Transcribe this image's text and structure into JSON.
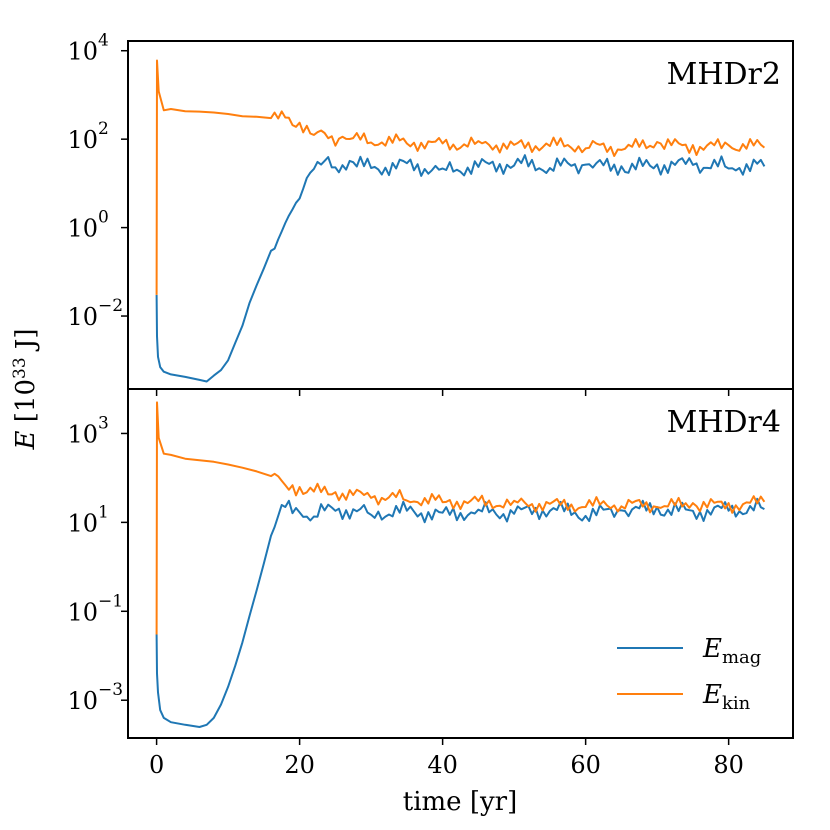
{
  "chart_data": [
    {
      "type": "line",
      "title": "MHDr2",
      "yscale": "log",
      "ylabel_base": "E",
      "ylabel_unit": "[10",
      "ylabel_exp": "33",
      "ylabel_unit_end": " J]",
      "xlim": [
        -4,
        89
      ],
      "ylim_exp": [
        -3.65,
        4.22
      ],
      "xticks": [
        {
          "value": 0,
          "label": "0"
        },
        {
          "value": 20,
          "label": "20"
        },
        {
          "value": 40,
          "label": "40"
        },
        {
          "value": 60,
          "label": "60"
        },
        {
          "value": 80,
          "label": "80"
        }
      ],
      "yticks": [
        {
          "exp": 4,
          "base": "10",
          "sup": "4"
        },
        {
          "exp": 2,
          "base": "10",
          "sup": "2"
        },
        {
          "exp": 0,
          "base": "10",
          "sup": "0"
        },
        {
          "exp": -2,
          "base": "10",
          "sup": "−2"
        }
      ],
      "series": [
        {
          "name": "E_mag",
          "color": "#1f77b4",
          "points": [
            [
              0,
              0.03
            ],
            [
              0.05,
              0.0035
            ],
            [
              0.2,
              0.0012
            ],
            [
              0.5,
              0.0007
            ],
            [
              1,
              0.00055
            ],
            [
              2,
              0.00048
            ],
            [
              4,
              0.00042
            ],
            [
              6,
              0.00036
            ],
            [
              7,
              0.00033
            ],
            [
              8,
              0.00045
            ],
            [
              9,
              0.0006
            ],
            [
              10,
              0.001
            ],
            [
              11,
              0.0025
            ],
            [
              12,
              0.006
            ],
            [
              13,
              0.02
            ],
            [
              14,
              0.05
            ],
            [
              15,
              0.12
            ],
            [
              16,
              0.3
            ],
            [
              17,
              0.6
            ],
            [
              18,
              1.2
            ],
            [
              19,
              2.5
            ],
            [
              20,
              5
            ],
            [
              21,
              12
            ],
            [
              22,
              22
            ],
            [
              23,
              28
            ],
            [
              25,
              25
            ],
            [
              27,
              30
            ],
            [
              30,
              22
            ],
            [
              35,
              26
            ],
            [
              40,
              20
            ],
            [
              45,
              24
            ],
            [
              50,
              28
            ],
            [
              55,
              24
            ],
            [
              60,
              26
            ],
            [
              65,
              22
            ],
            [
              70,
              25
            ],
            [
              75,
              27
            ],
            [
              80,
              24
            ],
            [
              85,
              26
            ]
          ]
        },
        {
          "name": "E_kin",
          "color": "#ff7f0e",
          "points": [
            [
              0,
              0.03
            ],
            [
              0.05,
              6000
            ],
            [
              0.3,
              1200
            ],
            [
              1,
              450
            ],
            [
              2,
              480
            ],
            [
              4,
              430
            ],
            [
              6,
              420
            ],
            [
              8,
              400
            ],
            [
              10,
              370
            ],
            [
              12,
              330
            ],
            [
              14,
              320
            ],
            [
              16,
              300
            ],
            [
              18,
              280
            ],
            [
              20,
              220
            ],
            [
              22,
              140
            ],
            [
              24,
              110
            ],
            [
              26,
              100
            ],
            [
              30,
              95
            ],
            [
              35,
              85
            ],
            [
              40,
              75
            ],
            [
              45,
              80
            ],
            [
              50,
              70
            ],
            [
              55,
              75
            ],
            [
              60,
              70
            ],
            [
              65,
              60
            ],
            [
              70,
              80
            ],
            [
              75,
              65
            ],
            [
              80,
              70
            ],
            [
              85,
              70
            ]
          ]
        }
      ]
    },
    {
      "type": "line",
      "title": "MHDr4",
      "yscale": "log",
      "xlim": [
        -4,
        89
      ],
      "ylim_exp": [
        -3.85,
        4.0
      ],
      "xticks": [
        {
          "value": 0,
          "label": "0"
        },
        {
          "value": 20,
          "label": "20"
        },
        {
          "value": 40,
          "label": "40"
        },
        {
          "value": 60,
          "label": "60"
        },
        {
          "value": 80,
          "label": "80"
        }
      ],
      "yticks": [
        {
          "exp": 3,
          "base": "10",
          "sup": "3"
        },
        {
          "exp": 1,
          "base": "10",
          "sup": "1"
        },
        {
          "exp": -1,
          "base": "10",
          "sup": "−1"
        },
        {
          "exp": -3,
          "base": "10",
          "sup": "−3"
        }
      ],
      "xlabel": "time [yr]",
      "legend": {
        "position": "lower-right",
        "entries": [
          {
            "base": "E",
            "sub": "mag",
            "color": "#1f77b4"
          },
          {
            "base": "E",
            "sub": "kin",
            "color": "#ff7f0e"
          }
        ]
      },
      "series": [
        {
          "name": "E_mag",
          "color": "#1f77b4",
          "points": [
            [
              0,
              0.03
            ],
            [
              0.05,
              0.004
            ],
            [
              0.2,
              0.0015
            ],
            [
              0.5,
              0.0006
            ],
            [
              1,
              0.0004
            ],
            [
              2,
              0.00032
            ],
            [
              4,
              0.00028
            ],
            [
              6,
              0.00025
            ],
            [
              7,
              0.00028
            ],
            [
              8,
              0.0004
            ],
            [
              9,
              0.0008
            ],
            [
              10,
              0.002
            ],
            [
              11,
              0.006
            ],
            [
              12,
              0.02
            ],
            [
              13,
              0.08
            ],
            [
              14,
              0.3
            ],
            [
              15,
              1.2
            ],
            [
              16,
              5
            ],
            [
              17,
              15
            ],
            [
              18,
              20
            ],
            [
              20,
              17
            ],
            [
              22,
              15
            ],
            [
              25,
              20
            ],
            [
              30,
              16
            ],
            [
              35,
              18
            ],
            [
              40,
              15
            ],
            [
              45,
              18
            ],
            [
              50,
              16
            ],
            [
              55,
              20
            ],
            [
              60,
              15
            ],
            [
              65,
              18
            ],
            [
              70,
              20
            ],
            [
              75,
              17
            ],
            [
              80,
              19
            ],
            [
              85,
              22
            ]
          ]
        },
        {
          "name": "E_kin",
          "color": "#ff7f0e",
          "points": [
            [
              0,
              0.03
            ],
            [
              0.05,
              5000
            ],
            [
              0.3,
              800
            ],
            [
              1,
              350
            ],
            [
              2,
              330
            ],
            [
              4,
              270
            ],
            [
              6,
              250
            ],
            [
              8,
              230
            ],
            [
              10,
              200
            ],
            [
              12,
              170
            ],
            [
              14,
              140
            ],
            [
              16,
              110
            ],
            [
              18,
              70
            ],
            [
              20,
              55
            ],
            [
              22,
              50
            ],
            [
              25,
              45
            ],
            [
              30,
              38
            ],
            [
              35,
              35
            ],
            [
              40,
              30
            ],
            [
              45,
              28
            ],
            [
              50,
              27
            ],
            [
              55,
              25
            ],
            [
              60,
              24
            ],
            [
              65,
              26
            ],
            [
              70,
              23
            ],
            [
              75,
              25
            ],
            [
              80,
              24
            ],
            [
              85,
              28
            ]
          ]
        }
      ]
    }
  ]
}
